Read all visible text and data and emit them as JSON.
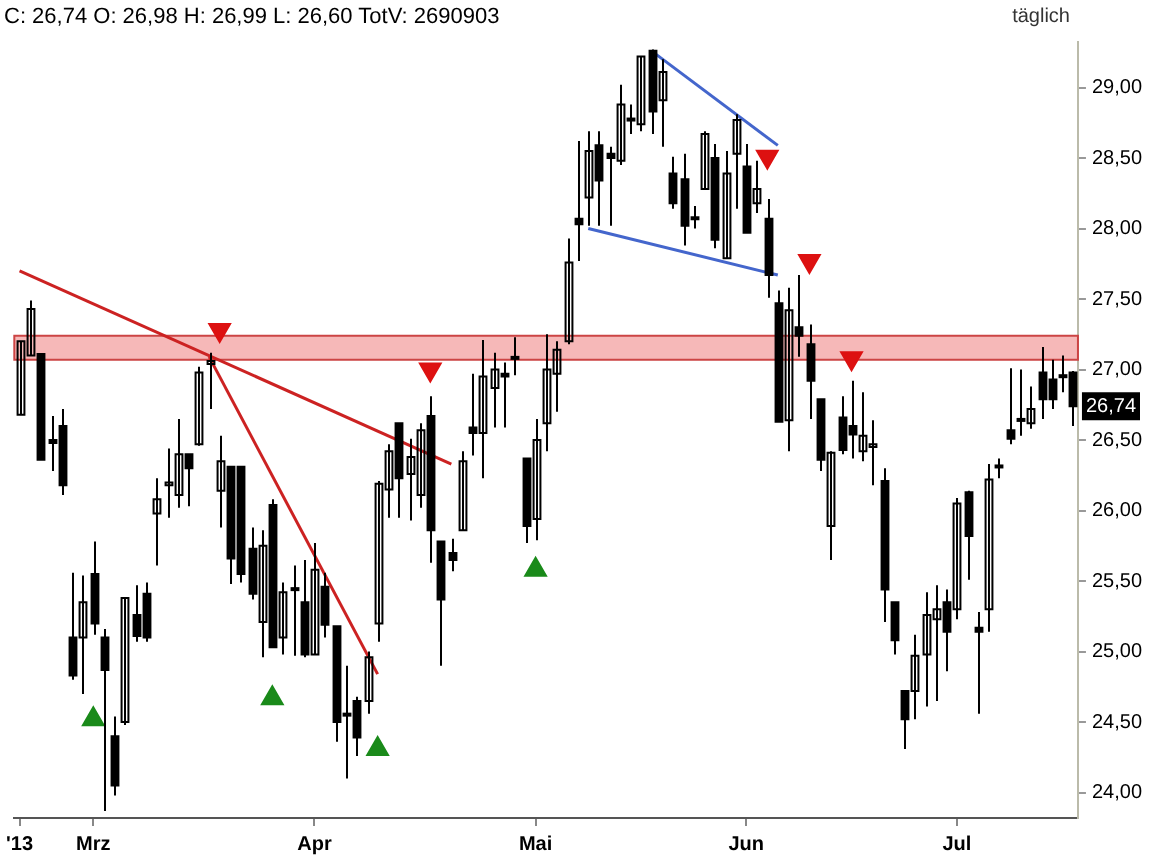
{
  "chart_data": {
    "type": "candlestick",
    "title": "C: 26,74 O: 26,98 H: 26,99 L: 26,60 TotV: 2690903",
    "annotations": [
      "täglich",
      {
        "text": "26,74",
        "y": 26.74
      }
    ],
    "color": "#000000",
    "legend": false,
    "ylim": [
      23.82,
      29.32
    ],
    "yticks": [
      {
        "value": 24,
        "label": "24,00"
      },
      {
        "value": 24.5,
        "label": "24,50"
      },
      {
        "value": 25,
        "label": "25,00"
      },
      {
        "value": 25.5,
        "label": "25,50"
      },
      {
        "value": 26,
        "label": "26,00"
      },
      {
        "value": 26.5,
        "label": "26,50"
      },
      {
        "value": 27,
        "label": "27,00"
      },
      {
        "value": 27.5,
        "label": "27,50"
      },
      {
        "value": 28,
        "label": "28,00"
      },
      {
        "value": 28.5,
        "label": "28,50"
      },
      {
        "value": 29,
        "label": "29,00"
      }
    ],
    "categories": [
      "'13",
      null,
      null,
      null,
      null,
      null,
      null,
      "Mrz",
      null,
      null,
      null,
      null,
      null,
      null,
      null,
      null,
      null,
      null,
      null,
      null,
      null,
      null,
      null,
      null,
      null,
      null,
      null,
      null,
      "Apr",
      null,
      null,
      null,
      null,
      null,
      null,
      null,
      null,
      null,
      null,
      null,
      null,
      null,
      null,
      null,
      null,
      null,
      null,
      null,
      null,
      "Mai",
      null,
      null,
      null,
      null,
      null,
      null,
      null,
      null,
      null,
      null,
      null,
      null,
      null,
      null,
      null,
      null,
      null,
      null,
      null,
      "Jun",
      null,
      null,
      null,
      null,
      null,
      null,
      null,
      null,
      null,
      null,
      null,
      null,
      null,
      null,
      null,
      null,
      null,
      null,
      null,
      "Jul",
      null,
      null,
      null,
      null,
      null,
      null,
      null,
      null,
      null,
      null,
      null
    ],
    "ohlc": [
      [
        26.68,
        27.2,
        26.68,
        27.2
      ],
      [
        27.1,
        27.49,
        27.1,
        27.43
      ],
      [
        27.11,
        27.11,
        26.36,
        26.36
      ],
      [
        26.5,
        26.67,
        26.28,
        26.48
      ],
      [
        26.6,
        26.72,
        26.11,
        26.18
      ],
      [
        25.1,
        25.56,
        24.8,
        24.83
      ],
      [
        25.1,
        25.54,
        24.7,
        25.35
      ],
      [
        25.55,
        25.78,
        25.12,
        25.2
      ],
      [
        25.1,
        25.16,
        23.87,
        24.87
      ],
      [
        24.4,
        24.54,
        23.98,
        24.05
      ],
      [
        24.5,
        25.38,
        24.48,
        25.38
      ],
      [
        25.26,
        25.47,
        25.07,
        25.11
      ],
      [
        25.41,
        25.49,
        25.07,
        25.1
      ],
      [
        25.98,
        26.23,
        25.61,
        26.08
      ],
      [
        26.18,
        26.44,
        25.95,
        26.2
      ],
      [
        26.11,
        26.65,
        26.02,
        26.4
      ],
      [
        26.4,
        26.4,
        26.03,
        26.3
      ],
      [
        26.47,
        27.02,
        26.46,
        26.98
      ],
      [
        27.04,
        27.12,
        26.72,
        27.06
      ],
      [
        26.14,
        26.53,
        25.88,
        26.35
      ],
      [
        26.31,
        26.31,
        25.48,
        25.66
      ],
      [
        26.31,
        26.31,
        25.49,
        25.55
      ],
      [
        25.73,
        25.88,
        25.37,
        25.41
      ],
      [
        25.21,
        25.86,
        24.96,
        25.75
      ],
      [
        26.04,
        26.08,
        25.03,
        25.03
      ],
      [
        25.1,
        25.49,
        24.98,
        25.42
      ],
      [
        25.44,
        25.61,
        24.97,
        25.45
      ],
      [
        25.35,
        25.65,
        24.96,
        24.98
      ],
      [
        24.98,
        25.77,
        24.98,
        25.58
      ],
      [
        25.46,
        25.56,
        25.1,
        25.19
      ],
      [
        25.18,
        25.18,
        24.36,
        24.5
      ],
      [
        24.55,
        24.9,
        24.1,
        24.56
      ],
      [
        24.65,
        24.68,
        24.26,
        24.39
      ],
      [
        24.65,
        25.0,
        24.56,
        24.96
      ],
      [
        25.2,
        26.21,
        25.07,
        26.19
      ],
      [
        26.15,
        26.47,
        25.95,
        26.42
      ],
      [
        26.62,
        26.62,
        25.95,
        26.23
      ],
      [
        26.26,
        26.51,
        25.93,
        26.38
      ],
      [
        26.11,
        26.62,
        26.02,
        26.57
      ],
      [
        26.67,
        26.81,
        25.63,
        25.86
      ],
      [
        25.78,
        25.78,
        24.9,
        25.37
      ],
      [
        25.7,
        25.8,
        25.57,
        25.65
      ],
      [
        25.86,
        26.42,
        25.86,
        26.35
      ],
      [
        26.59,
        26.97,
        26.39,
        26.55
      ],
      [
        26.55,
        27.21,
        26.23,
        26.95
      ],
      [
        26.87,
        27.12,
        26.59,
        27.0
      ],
      [
        26.97,
        27.05,
        26.59,
        26.95
      ],
      [
        27.09,
        27.23,
        26.96,
        27.08
      ],
      [
        26.37,
        26.37,
        25.77,
        25.89
      ],
      [
        25.94,
        26.65,
        25.79,
        26.5
      ],
      [
        26.62,
        27.25,
        26.42,
        27.0
      ],
      [
        26.97,
        27.2,
        26.7,
        27.14
      ],
      [
        27.2,
        27.93,
        27.18,
        27.76
      ],
      [
        28.07,
        28.62,
        27.77,
        28.03
      ],
      [
        28.22,
        28.69,
        28.02,
        28.55
      ],
      [
        28.59,
        28.69,
        28.02,
        28.34
      ],
      [
        28.53,
        28.58,
        28.02,
        28.5
      ],
      [
        28.48,
        29.02,
        28.45,
        28.88
      ],
      [
        28.78,
        28.88,
        28.67,
        28.77
      ],
      [
        28.74,
        29.22,
        28.69,
        29.22
      ],
      [
        29.26,
        29.27,
        28.67,
        28.83
      ],
      [
        28.91,
        29.2,
        28.58,
        29.11
      ],
      [
        28.39,
        28.51,
        28.14,
        28.18
      ],
      [
        28.35,
        28.53,
        27.88,
        28.02
      ],
      [
        28.08,
        28.16,
        28.0,
        28.07
      ],
      [
        28.28,
        28.69,
        28.28,
        28.67
      ],
      [
        28.5,
        28.6,
        27.86,
        27.92
      ],
      [
        27.79,
        28.55,
        27.79,
        28.39
      ],
      [
        28.53,
        28.81,
        28.14,
        28.77
      ],
      [
        28.44,
        28.6,
        27.97,
        27.97
      ],
      [
        28.18,
        28.48,
        28.11,
        28.28
      ],
      [
        28.07,
        28.21,
        27.51,
        27.67
      ],
      [
        27.47,
        27.56,
        26.63,
        26.63
      ],
      [
        26.64,
        27.58,
        26.42,
        27.42
      ],
      [
        27.3,
        27.67,
        27.09,
        27.24
      ],
      [
        27.18,
        27.32,
        26.65,
        26.92
      ],
      [
        26.79,
        26.79,
        26.28,
        26.36
      ],
      [
        25.89,
        26.42,
        25.65,
        26.41
      ],
      [
        26.66,
        26.81,
        26.4,
        26.43
      ],
      [
        26.6,
        26.92,
        26.37,
        26.54
      ],
      [
        26.42,
        26.84,
        26.35,
        26.53
      ],
      [
        26.45,
        26.64,
        26.18,
        26.47
      ],
      [
        26.21,
        26.3,
        25.21,
        25.44
      ],
      [
        25.35,
        25.35,
        24.98,
        25.08
      ],
      [
        24.72,
        24.72,
        24.31,
        24.52
      ],
      [
        24.72,
        25.12,
        24.52,
        24.97
      ],
      [
        24.98,
        25.42,
        24.61,
        25.26
      ],
      [
        25.23,
        25.47,
        24.65,
        25.3
      ],
      [
        25.35,
        25.44,
        24.86,
        25.14
      ],
      [
        25.3,
        26.09,
        25.23,
        26.05
      ],
      [
        26.13,
        26.14,
        25.51,
        25.82
      ],
      [
        25.17,
        25.28,
        24.56,
        25.14
      ],
      [
        25.3,
        26.33,
        25.14,
        26.22
      ],
      [
        26.31,
        26.37,
        26.23,
        26.32
      ],
      [
        26.57,
        27.01,
        26.47,
        26.51
      ],
      [
        26.65,
        27.0,
        26.53,
        26.64
      ],
      [
        26.62,
        26.88,
        26.58,
        26.72
      ],
      [
        26.98,
        27.16,
        26.65,
        26.79
      ],
      [
        26.93,
        27.07,
        26.72,
        26.79
      ],
      [
        26.95,
        27.1,
        26.84,
        26.96
      ],
      [
        26.98,
        26.99,
        26.6,
        26.74
      ]
    ],
    "series": [
      {
        "type": "line",
        "color": "#cc2222",
        "line_style": "solid",
        "values": [
          27.7,
          null,
          null,
          null,
          null,
          null,
          null,
          null,
          null,
          null,
          null,
          null,
          null,
          null,
          null,
          null,
          null,
          null,
          null,
          null,
          null,
          null,
          null,
          null,
          null,
          null,
          null,
          null,
          null,
          null,
          null,
          null,
          null,
          null,
          null,
          null,
          null,
          null,
          null,
          null,
          null,
          26.33,
          null,
          null,
          null,
          null,
          null,
          null,
          null,
          null,
          null,
          null,
          null,
          null,
          null,
          null,
          null,
          null,
          null,
          null,
          null,
          null,
          null,
          null,
          null,
          null,
          null,
          null,
          null,
          null,
          null,
          null,
          null,
          null,
          null,
          null,
          null,
          null,
          null,
          null,
          null,
          null,
          null,
          null,
          null,
          null,
          null,
          null,
          null,
          null,
          null,
          null,
          null,
          null,
          null,
          null,
          null,
          null,
          null,
          null,
          null
        ]
      },
      {
        "type": "line",
        "color": "#cc2222",
        "line_style": "solid",
        "values": [
          null,
          null,
          null,
          null,
          null,
          null,
          null,
          null,
          null,
          null,
          null,
          null,
          null,
          null,
          null,
          null,
          null,
          null,
          27.09,
          null,
          null,
          null,
          null,
          null,
          null,
          null,
          null,
          null,
          null,
          null,
          null,
          null,
          null,
          null,
          24.84,
          null,
          null,
          null,
          null,
          null,
          null,
          null,
          null,
          null,
          null,
          null,
          null,
          null,
          null,
          null,
          null,
          null,
          null,
          null,
          null,
          null,
          null,
          null,
          null,
          null,
          null,
          null,
          null,
          null,
          null,
          null,
          null,
          null,
          null,
          null,
          null,
          null,
          null,
          null,
          null,
          null,
          null,
          null,
          null,
          null,
          null,
          null,
          null,
          null,
          null,
          null,
          null,
          null,
          null,
          null,
          null,
          null,
          null,
          null,
          null,
          null,
          null,
          null,
          null,
          null,
          null
        ]
      },
      {
        "type": "line",
        "color": "#4466cc",
        "line_style": "solid",
        "values": [
          null,
          null,
          null,
          null,
          null,
          null,
          null,
          null,
          null,
          null,
          null,
          null,
          null,
          null,
          null,
          null,
          null,
          null,
          null,
          null,
          null,
          null,
          null,
          null,
          null,
          null,
          null,
          null,
          null,
          null,
          null,
          null,
          null,
          null,
          null,
          null,
          null,
          null,
          null,
          null,
          null,
          null,
          null,
          null,
          null,
          null,
          null,
          null,
          null,
          null,
          null,
          null,
          null,
          null,
          null,
          null,
          null,
          null,
          null,
          null,
          29.26,
          null,
          null,
          null,
          null,
          null,
          null,
          null,
          null,
          null,
          null,
          null,
          28.59,
          null,
          null,
          null,
          null,
          null,
          null,
          null,
          null,
          null,
          null,
          null,
          null,
          null,
          null,
          null,
          null,
          null,
          null,
          null,
          null,
          null,
          null,
          null,
          null,
          null,
          null,
          null,
          null
        ]
      },
      {
        "type": "line",
        "color": "#4466cc",
        "line_style": "solid",
        "values": [
          null,
          null,
          null,
          null,
          null,
          null,
          null,
          null,
          null,
          null,
          null,
          null,
          null,
          null,
          null,
          null,
          null,
          null,
          null,
          null,
          null,
          null,
          null,
          null,
          null,
          null,
          null,
          null,
          null,
          null,
          null,
          null,
          null,
          null,
          null,
          null,
          null,
          null,
          null,
          null,
          null,
          null,
          null,
          null,
          null,
          null,
          null,
          null,
          null,
          null,
          null,
          null,
          null,
          null,
          28.0,
          null,
          null,
          null,
          null,
          null,
          null,
          null,
          null,
          null,
          null,
          null,
          null,
          null,
          null,
          null,
          null,
          null,
          27.67,
          null,
          null,
          null,
          null,
          null,
          null,
          null,
          null,
          null,
          null,
          null,
          null,
          null,
          null,
          null,
          null,
          null,
          null,
          null,
          null,
          null,
          null,
          null,
          null,
          null,
          null,
          null,
          null
        ]
      },
      {
        "type": "scatter",
        "color": "#dd1111",
        "marker": "triangle",
        "values": [
          null,
          null,
          null,
          null,
          null,
          null,
          null,
          null,
          null,
          null,
          null,
          null,
          null,
          null,
          null,
          null,
          null,
          null,
          null,
          27.28,
          null,
          null,
          null,
          null,
          null,
          null,
          null,
          null,
          null,
          null,
          null,
          null,
          null,
          null,
          null,
          null,
          null,
          null,
          null,
          27.0,
          null,
          null,
          null,
          null,
          null,
          null,
          null,
          null,
          null,
          null,
          null,
          null,
          null,
          null,
          null,
          null,
          null,
          null,
          null,
          null,
          null,
          null,
          null,
          null,
          null,
          null,
          null,
          null,
          null,
          null,
          null,
          28.51,
          null,
          null,
          null,
          27.77,
          null,
          null,
          null,
          27.08,
          null,
          null,
          null,
          null,
          null,
          null,
          null,
          null,
          null,
          null,
          null,
          null,
          null,
          null,
          null,
          null,
          null,
          null,
          null,
          null,
          null
        ]
      },
      {
        "type": "scatter",
        "color": "#1a8a1a",
        "marker": "triangle",
        "values": [
          null,
          null,
          null,
          null,
          null,
          null,
          null,
          24.52,
          null,
          null,
          null,
          null,
          null,
          null,
          null,
          null,
          null,
          null,
          null,
          null,
          null,
          null,
          null,
          null,
          24.67,
          null,
          null,
          null,
          null,
          null,
          null,
          null,
          null,
          null,
          24.31,
          null,
          null,
          null,
          null,
          null,
          null,
          null,
          null,
          null,
          null,
          null,
          null,
          null,
          null,
          25.58,
          null,
          null,
          null,
          null,
          null,
          null,
          null,
          null,
          null,
          null,
          null,
          null,
          null,
          null,
          null,
          null,
          null,
          null,
          null,
          null,
          null,
          null,
          null,
          null,
          null,
          null,
          null,
          null,
          null,
          null,
          null,
          null,
          null,
          null,
          null,
          null,
          null,
          null,
          null,
          null,
          null,
          null,
          null,
          null,
          null,
          null,
          null,
          null,
          null,
          null,
          null
        ]
      }
    ],
    "bands": [
      {
        "axis": "y",
        "from": 27.07,
        "to": 27.24,
        "color": "#f4a6a6"
      }
    ]
  }
}
